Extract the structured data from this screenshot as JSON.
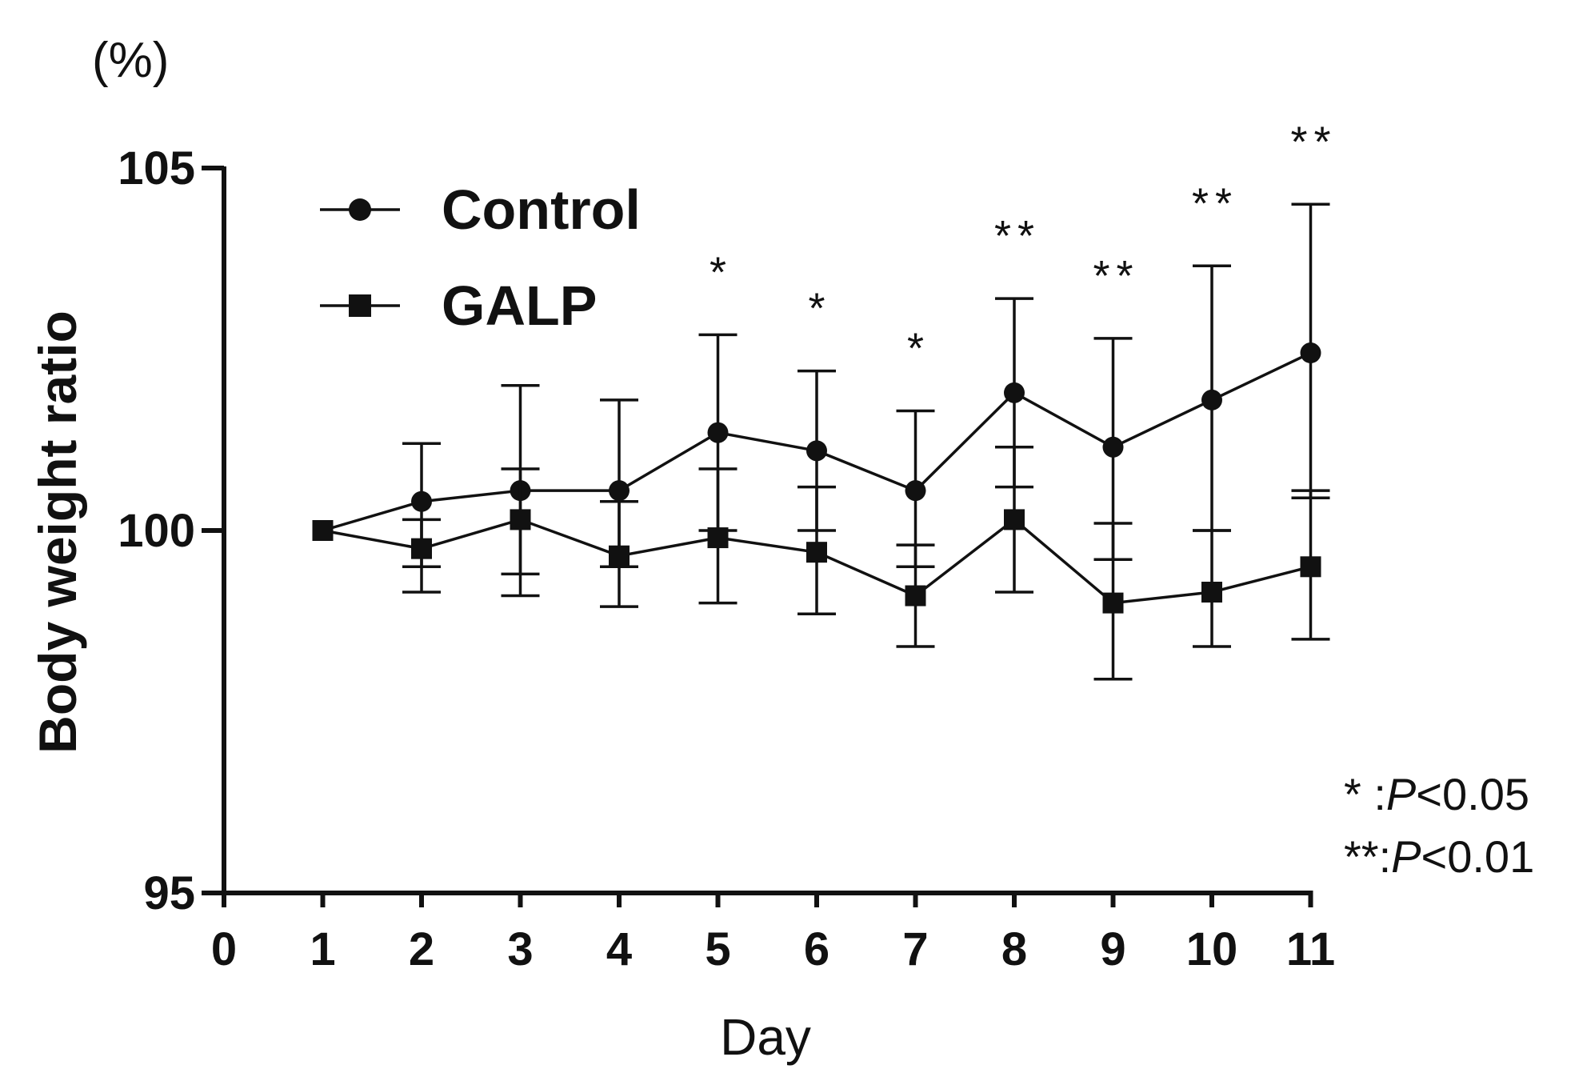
{
  "chart_data": {
    "type": "line",
    "title": "",
    "unit_label": "(%)",
    "xlabel": "Day",
    "ylabel": "Body weight ratio",
    "xlim": [
      0,
      11
    ],
    "ylim": [
      95,
      105
    ],
    "x_ticks": [
      0,
      1,
      2,
      3,
      4,
      5,
      6,
      7,
      8,
      9,
      10,
      11
    ],
    "y_ticks": [
      95,
      100,
      105
    ],
    "x": [
      1,
      2,
      3,
      4,
      5,
      6,
      7,
      8,
      9,
      10,
      11
    ],
    "series": [
      {
        "name": "Control",
        "marker": "circle",
        "values": [
          100.0,
          100.4,
          100.55,
          100.55,
          101.35,
          101.1,
          100.55,
          101.9,
          101.15,
          101.8,
          102.45
        ],
        "error_upper": [
          100.0,
          101.2,
          102.0,
          101.8,
          102.7,
          102.2,
          101.65,
          103.2,
          102.65,
          103.65,
          104.5
        ],
        "error_lower": [
          100.0,
          99.5,
          99.4,
          99.5,
          100.0,
          100.0,
          99.5,
          100.6,
          99.6,
          100.0,
          100.45
        ]
      },
      {
        "name": "GALP",
        "marker": "square",
        "values": [
          100.0,
          99.75,
          100.15,
          99.65,
          99.9,
          99.7,
          99.1,
          100.15,
          99.0,
          99.15,
          99.5
        ],
        "error_upper": [
          100.0,
          100.15,
          100.85,
          100.4,
          100.85,
          100.6,
          99.8,
          101.15,
          100.1,
          100.0,
          100.55
        ],
        "error_lower": [
          100.0,
          99.15,
          99.1,
          98.95,
          99.0,
          98.85,
          98.4,
          99.15,
          97.95,
          98.4,
          98.5
        ]
      }
    ],
    "significance": [
      {
        "x": 5,
        "label": "*"
      },
      {
        "x": 6,
        "label": "*"
      },
      {
        "x": 7,
        "label": "*"
      },
      {
        "x": 8,
        "label": "**"
      },
      {
        "x": 9,
        "label": "**"
      },
      {
        "x": 10,
        "label": "**"
      },
      {
        "x": 11,
        "label": "**"
      }
    ],
    "notes": [
      {
        "stars": "* :",
        "p": "P",
        "value": "<0.05"
      },
      {
        "stars": "**:",
        "p": "P",
        "value": "<0.01"
      }
    ],
    "legend_position": "top-left"
  }
}
